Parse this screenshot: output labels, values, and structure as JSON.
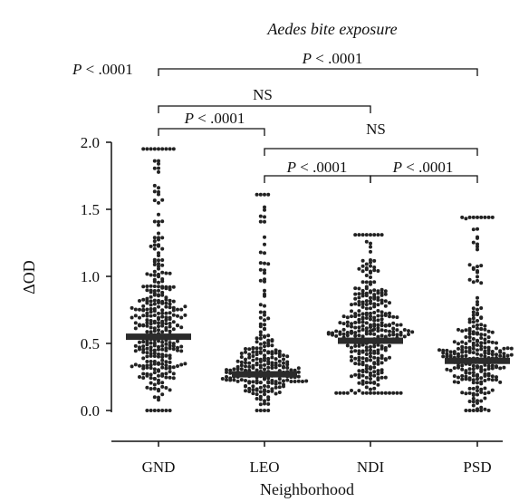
{
  "chart_data": {
    "type": "scatter",
    "subtitle": "Aedes bite exposure",
    "xlabel": "Neighborhood",
    "ylabel": "ΔOD",
    "ylim": [
      0.0,
      2.0
    ],
    "yticks": [
      "0.0",
      "0.5",
      "1.0",
      "1.5",
      "2.0"
    ],
    "categories": [
      "GND",
      "LEO",
      "NDI",
      "PSD"
    ],
    "medians": [
      0.55,
      0.27,
      0.52,
      0.37
    ],
    "y_max_points": [
      1.95,
      1.61,
      1.31,
      1.44
    ],
    "y_min_points": [
      0.0,
      0.0,
      0.13,
      0.0
    ],
    "n_points_est": [
      330,
      250,
      330,
      260
    ],
    "significance": [
      {
        "from": "GND",
        "to": "PSD",
        "label": "P < .0001"
      },
      {
        "from": "GND",
        "to": "NDI",
        "label": "NS"
      },
      {
        "from": "GND",
        "to": "LEO",
        "label": "P < .0001"
      },
      {
        "from": "LEO",
        "to": "PSD",
        "label": "NS"
      },
      {
        "from": "LEO",
        "to": "NDI",
        "label": "P < .0001"
      },
      {
        "from": "NDI",
        "to": "PSD",
        "label": "P < .0001"
      }
    ],
    "grid": false,
    "marker_color": "#222222",
    "median_color": "#2b2b2b"
  }
}
